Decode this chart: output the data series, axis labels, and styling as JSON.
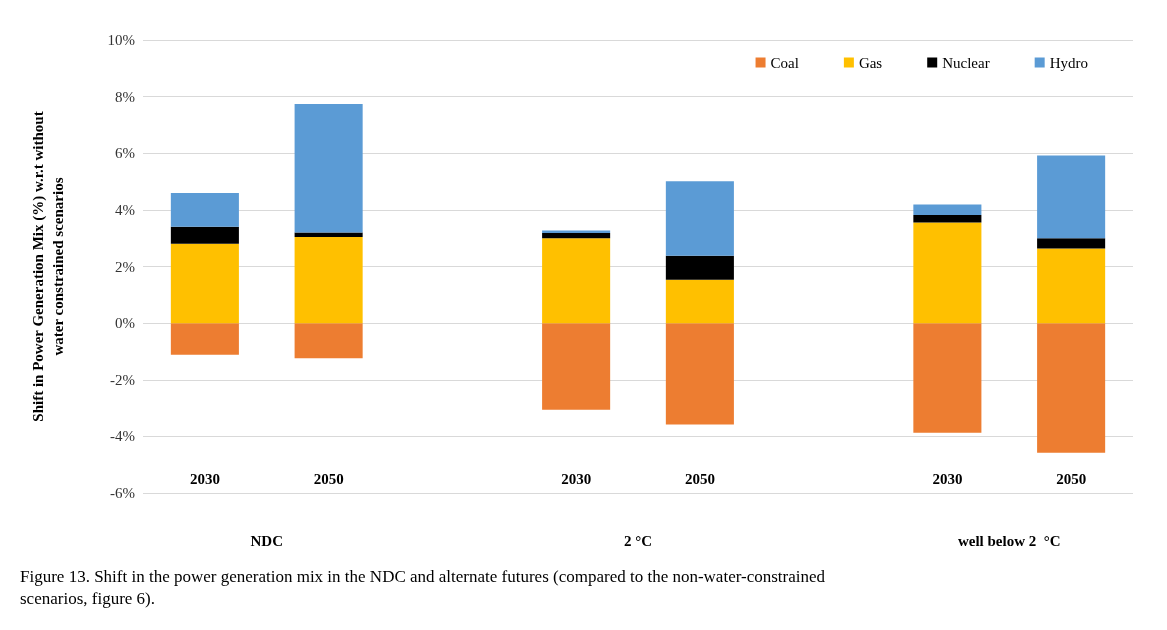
{
  "chart_data": {
    "type": "bar",
    "stacked": true,
    "ylabel": "Shift in Power Generation Mix (%) w.r.t without\nwater constrained scenarios",
    "categories": [
      "2030",
      "2050",
      null,
      "2030",
      "2050",
      null,
      "2030",
      "2050"
    ],
    "series": [
      {
        "name": "Coal",
        "color": "#ed7d31",
        "values": [
          -1.12,
          -1.24,
          null,
          -3.06,
          -3.58,
          null,
          -3.87,
          -4.58
        ]
      },
      {
        "name": "Gas",
        "color": "#ffc000",
        "values": [
          2.8,
          3.04,
          null,
          3.0,
          1.53,
          null,
          3.55,
          2.64
        ]
      },
      {
        "name": "Nuclear",
        "color": "#000000",
        "values": [
          0.6,
          0.16,
          null,
          0.18,
          0.85,
          null,
          0.27,
          0.36
        ]
      },
      {
        "name": "Hydro",
        "color": "#5b9bd5",
        "values": [
          1.2,
          4.54,
          null,
          0.09,
          2.63,
          null,
          0.37,
          2.92
        ]
      }
    ],
    "ylim": [
      -6,
      10
    ],
    "yticks": [
      {
        "value": -6,
        "label": "-6%"
      },
      {
        "value": -4,
        "label": "-4%"
      },
      {
        "value": -2,
        "label": "-2%"
      },
      {
        "value": 0,
        "label": "0%"
      },
      {
        "value": 2,
        "label": "2%"
      },
      {
        "value": 4,
        "label": "4%"
      },
      {
        "value": 6,
        "label": "6%"
      },
      {
        "value": 8,
        "label": "8%"
      },
      {
        "value": 10,
        "label": "10%"
      }
    ],
    "grid": "y",
    "legend": "top right",
    "annotations": [
      "NDC",
      "2 °C",
      "well below 2  °C",
      "Figure 13. Shift in the power generation mix in the NDC and alternate futures (compared to the non-water-constrained\nscenarios, figure 6)."
    ]
  }
}
